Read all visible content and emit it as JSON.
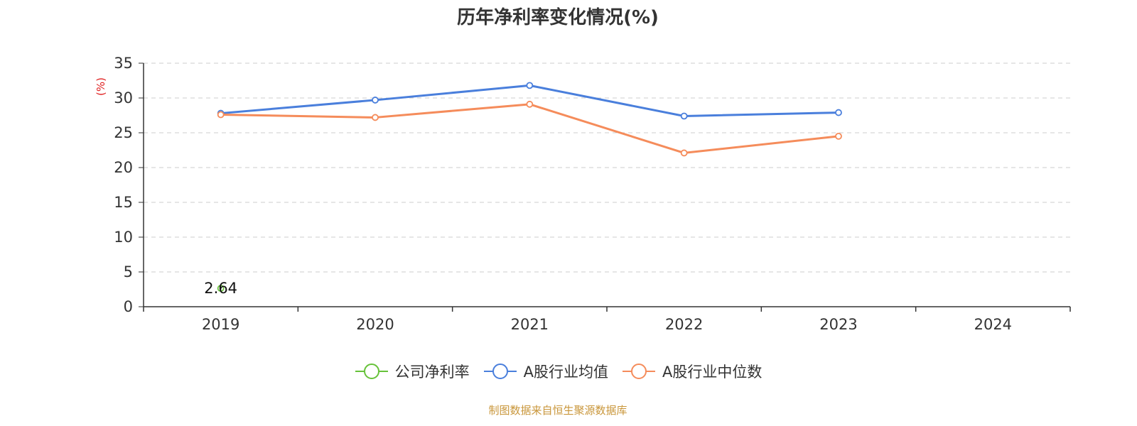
{
  "footer_text": "制图数据来自恒生聚源数据库",
  "chart_data": {
    "type": "line",
    "title": "历年净利率变化情况(%)",
    "ylabel": "(%)",
    "xlabel": "",
    "categories": [
      "2019",
      "2020",
      "2021",
      "2022",
      "2023",
      "2024"
    ],
    "ylim": [
      0,
      35
    ],
    "yticks": [
      0,
      5,
      10,
      15,
      20,
      25,
      30,
      35
    ],
    "grid": true,
    "legend_position": "bottom",
    "series": [
      {
        "name": "公司净利率",
        "color": "#67c23a",
        "values": [
          2.64,
          null,
          null,
          null,
          null,
          null
        ],
        "data_labels": [
          "2.64",
          null,
          null,
          null,
          null,
          null
        ]
      },
      {
        "name": "A股行业均值",
        "color": "#4a7fdc",
        "values": [
          27.8,
          29.7,
          31.8,
          27.4,
          27.9,
          null
        ]
      },
      {
        "name": "A股行业中位数",
        "color": "#f58c5b",
        "values": [
          27.6,
          27.2,
          29.1,
          22.1,
          24.5,
          null
        ]
      }
    ],
    "axis_label_color": "#e02020"
  }
}
